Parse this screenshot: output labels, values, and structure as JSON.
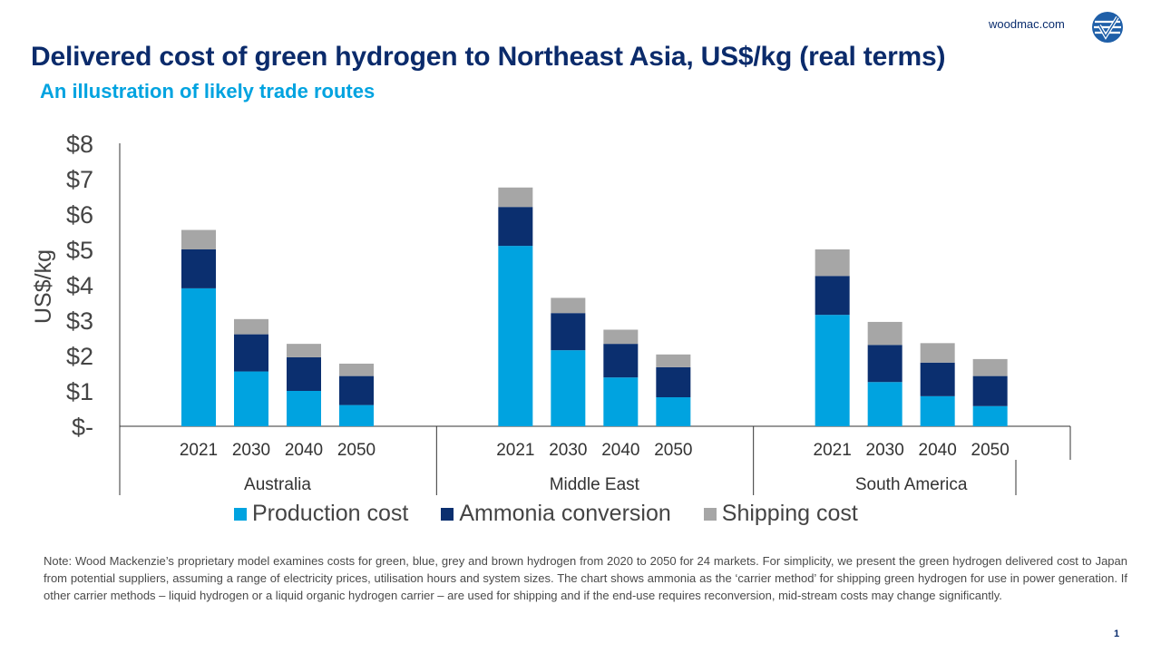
{
  "header": {
    "site": "woodmac.com",
    "logo_icon": "woodmac-logo-icon",
    "title": "Delivered cost of green hydrogen to Northeast Asia, US$/kg (real terms)",
    "subtitle": "An illustration of likely trade routes"
  },
  "colors": {
    "production": "#00a3e0",
    "ammonia": "#0b2f6f",
    "shipping": "#a6a6a6",
    "axis": "#333333"
  },
  "chart_data": {
    "type": "bar",
    "stacked": true,
    "ylabel": "US$/kg",
    "ylim": [
      0,
      8
    ],
    "yticks": [
      "$-",
      "$1",
      "$2",
      "$3",
      "$4",
      "$5",
      "$6",
      "$7",
      "$8"
    ],
    "groups": [
      {
        "name": "Australia",
        "categories": [
          "2021",
          "2030",
          "2040",
          "2050"
        ]
      },
      {
        "name": "Middle East",
        "categories": [
          "2021",
          "2030",
          "2040",
          "2050"
        ]
      },
      {
        "name": "South America",
        "categories": [
          "2021",
          "2030",
          "2040",
          "2050"
        ]
      }
    ],
    "series": [
      {
        "name": "Production cost",
        "color_key": "production",
        "values": [
          3.9,
          1.55,
          1.0,
          0.6,
          5.1,
          2.15,
          1.38,
          0.82,
          3.15,
          1.25,
          0.85,
          0.57
        ]
      },
      {
        "name": "Ammonia conversion",
        "color_key": "ammonia",
        "values": [
          1.1,
          1.05,
          0.95,
          0.82,
          1.1,
          1.05,
          0.95,
          0.85,
          1.1,
          1.05,
          0.95,
          0.85
        ]
      },
      {
        "name": "Shipping cost",
        "color_key": "shipping",
        "values": [
          0.55,
          0.43,
          0.38,
          0.35,
          0.55,
          0.43,
          0.4,
          0.36,
          0.75,
          0.65,
          0.55,
          0.48
        ]
      }
    ],
    "legend_position": "bottom",
    "grid": false
  },
  "legend": {
    "items": [
      {
        "label": "Production cost",
        "color_key": "production"
      },
      {
        "label": "Ammonia conversion",
        "color_key": "ammonia"
      },
      {
        "label": "Shipping cost",
        "color_key": "shipping"
      }
    ]
  },
  "note": "Note: Wood Mackenzie’s proprietary model examines costs for green, blue, grey and brown hydrogen from 2020 to 2050 for 24 markets. For simplicity, we present the green hydrogen delivered cost to Japan from potential suppliers, assuming a range of electricity prices, utilisation hours and system sizes. The chart shows ammonia as the ‘carrier method’ for shipping green hydrogen for use in power generation. If other carrier methods – liquid hydrogen or a liquid organic hydrogen carrier – are used for shipping and if the end-use requires reconversion, mid-stream costs may change significantly.",
  "page_number": "1"
}
